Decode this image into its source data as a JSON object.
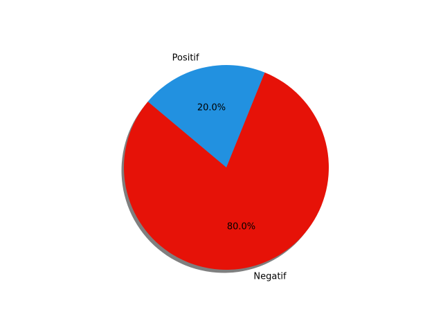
{
  "chart_data": {
    "type": "pie",
    "labels": [
      "Negatif",
      "Positif"
    ],
    "values": [
      80.0,
      20.0
    ],
    "percent_labels": [
      "80.0%",
      "20.0%"
    ],
    "colors": [
      "#e61208",
      "#2291e0"
    ],
    "shadow": true,
    "start_angle_deg": 140,
    "direction": "counterclockwise"
  }
}
